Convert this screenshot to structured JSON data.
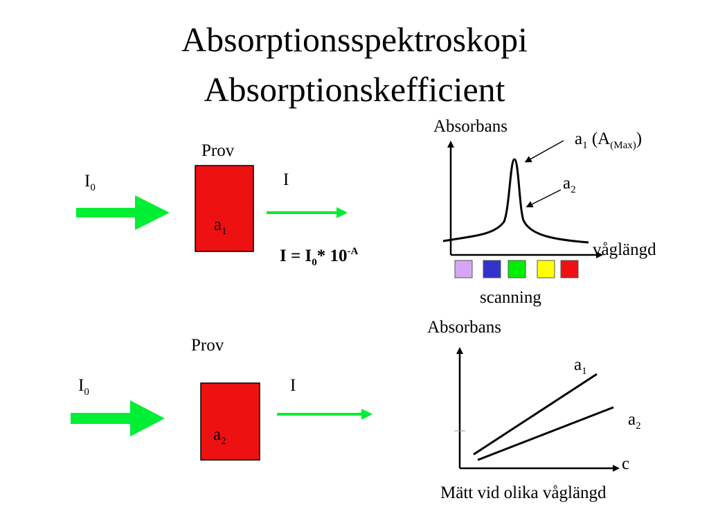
{
  "title": {
    "line1": "Absorptionsspektroskopi",
    "line2": "Absorptionskefficient"
  },
  "top_experiment": {
    "sample_label": "Prov",
    "incident_symbol": "I",
    "incident_subscript": "0",
    "transmitted_symbol": "I",
    "sample_symbol": "a",
    "sample_subscript": "1",
    "equation": {
      "lhs": "I = I",
      "sub": "0",
      "mid": "* 10",
      "sup": "-A"
    }
  },
  "bottom_experiment": {
    "sample_label": "Prov",
    "incident_symbol": "I",
    "incident_subscript": "0",
    "transmitted_symbol": "I",
    "sample_symbol": "a",
    "sample_subscript": "2"
  },
  "spectrum_plot": {
    "ylabel": "Absorbans",
    "xlabel": "våglängd",
    "peak_annotation": {
      "symbol": "a",
      "subscript": "1",
      "text": "(A",
      "sub_text": "(Max)",
      "close": ")"
    },
    "shoulder_annotation": {
      "symbol": "a",
      "subscript": "2"
    },
    "scanning_label": "scanning",
    "filter_colors": [
      "#d6a6f2",
      "#3333cc",
      "#00ee00",
      "#ffff00",
      "#ee1111"
    ]
  },
  "concentration_plot": {
    "ylabel": "Absorbans",
    "xlabel": "c",
    "series": [
      {
        "symbol": "a",
        "subscript": "1"
      },
      {
        "symbol": "a",
        "subscript": "2"
      }
    ],
    "caption": "Mätt vid olika våglängd"
  },
  "colors": {
    "arrow_green": "#00ee33",
    "sample_red": "#ee1111"
  }
}
